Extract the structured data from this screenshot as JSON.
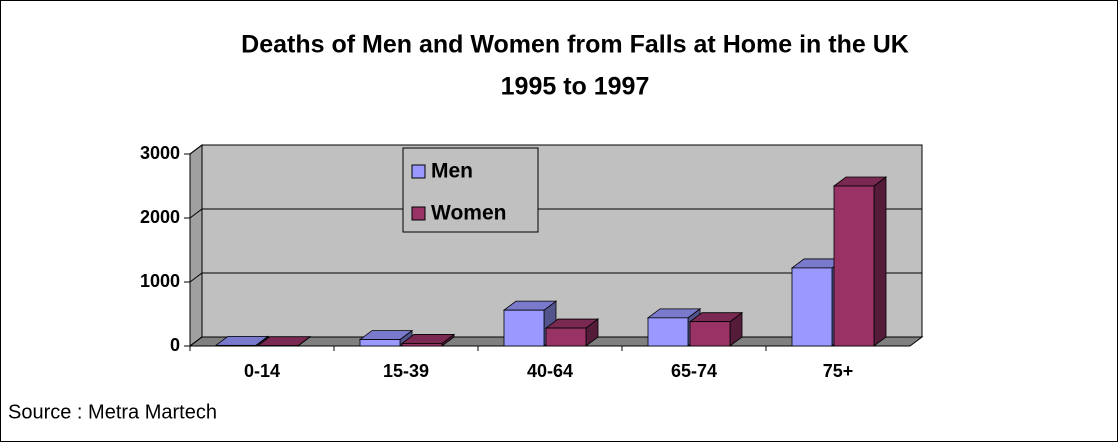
{
  "chart_data": {
    "type": "bar3d",
    "title": "Deaths of Men and Women from Falls at Home in the UK",
    "subtitle": "1995 to 1997",
    "categories": [
      "0-14",
      "15-39",
      "40-64",
      "65-74",
      "75+"
    ],
    "series": [
      {
        "name": "Men",
        "color": "#9999ff",
        "values": [
          10,
          100,
          560,
          440,
          1220
        ]
      },
      {
        "name": "Women",
        "color": "#993366",
        "values": [
          5,
          40,
          280,
          380,
          2500
        ]
      }
    ],
    "ylim": [
      0,
      3000
    ],
    "yticks": [
      0,
      1000,
      2000,
      3000
    ],
    "grid": true,
    "legend": "top",
    "source": "Source  :  Metra Martech"
  }
}
